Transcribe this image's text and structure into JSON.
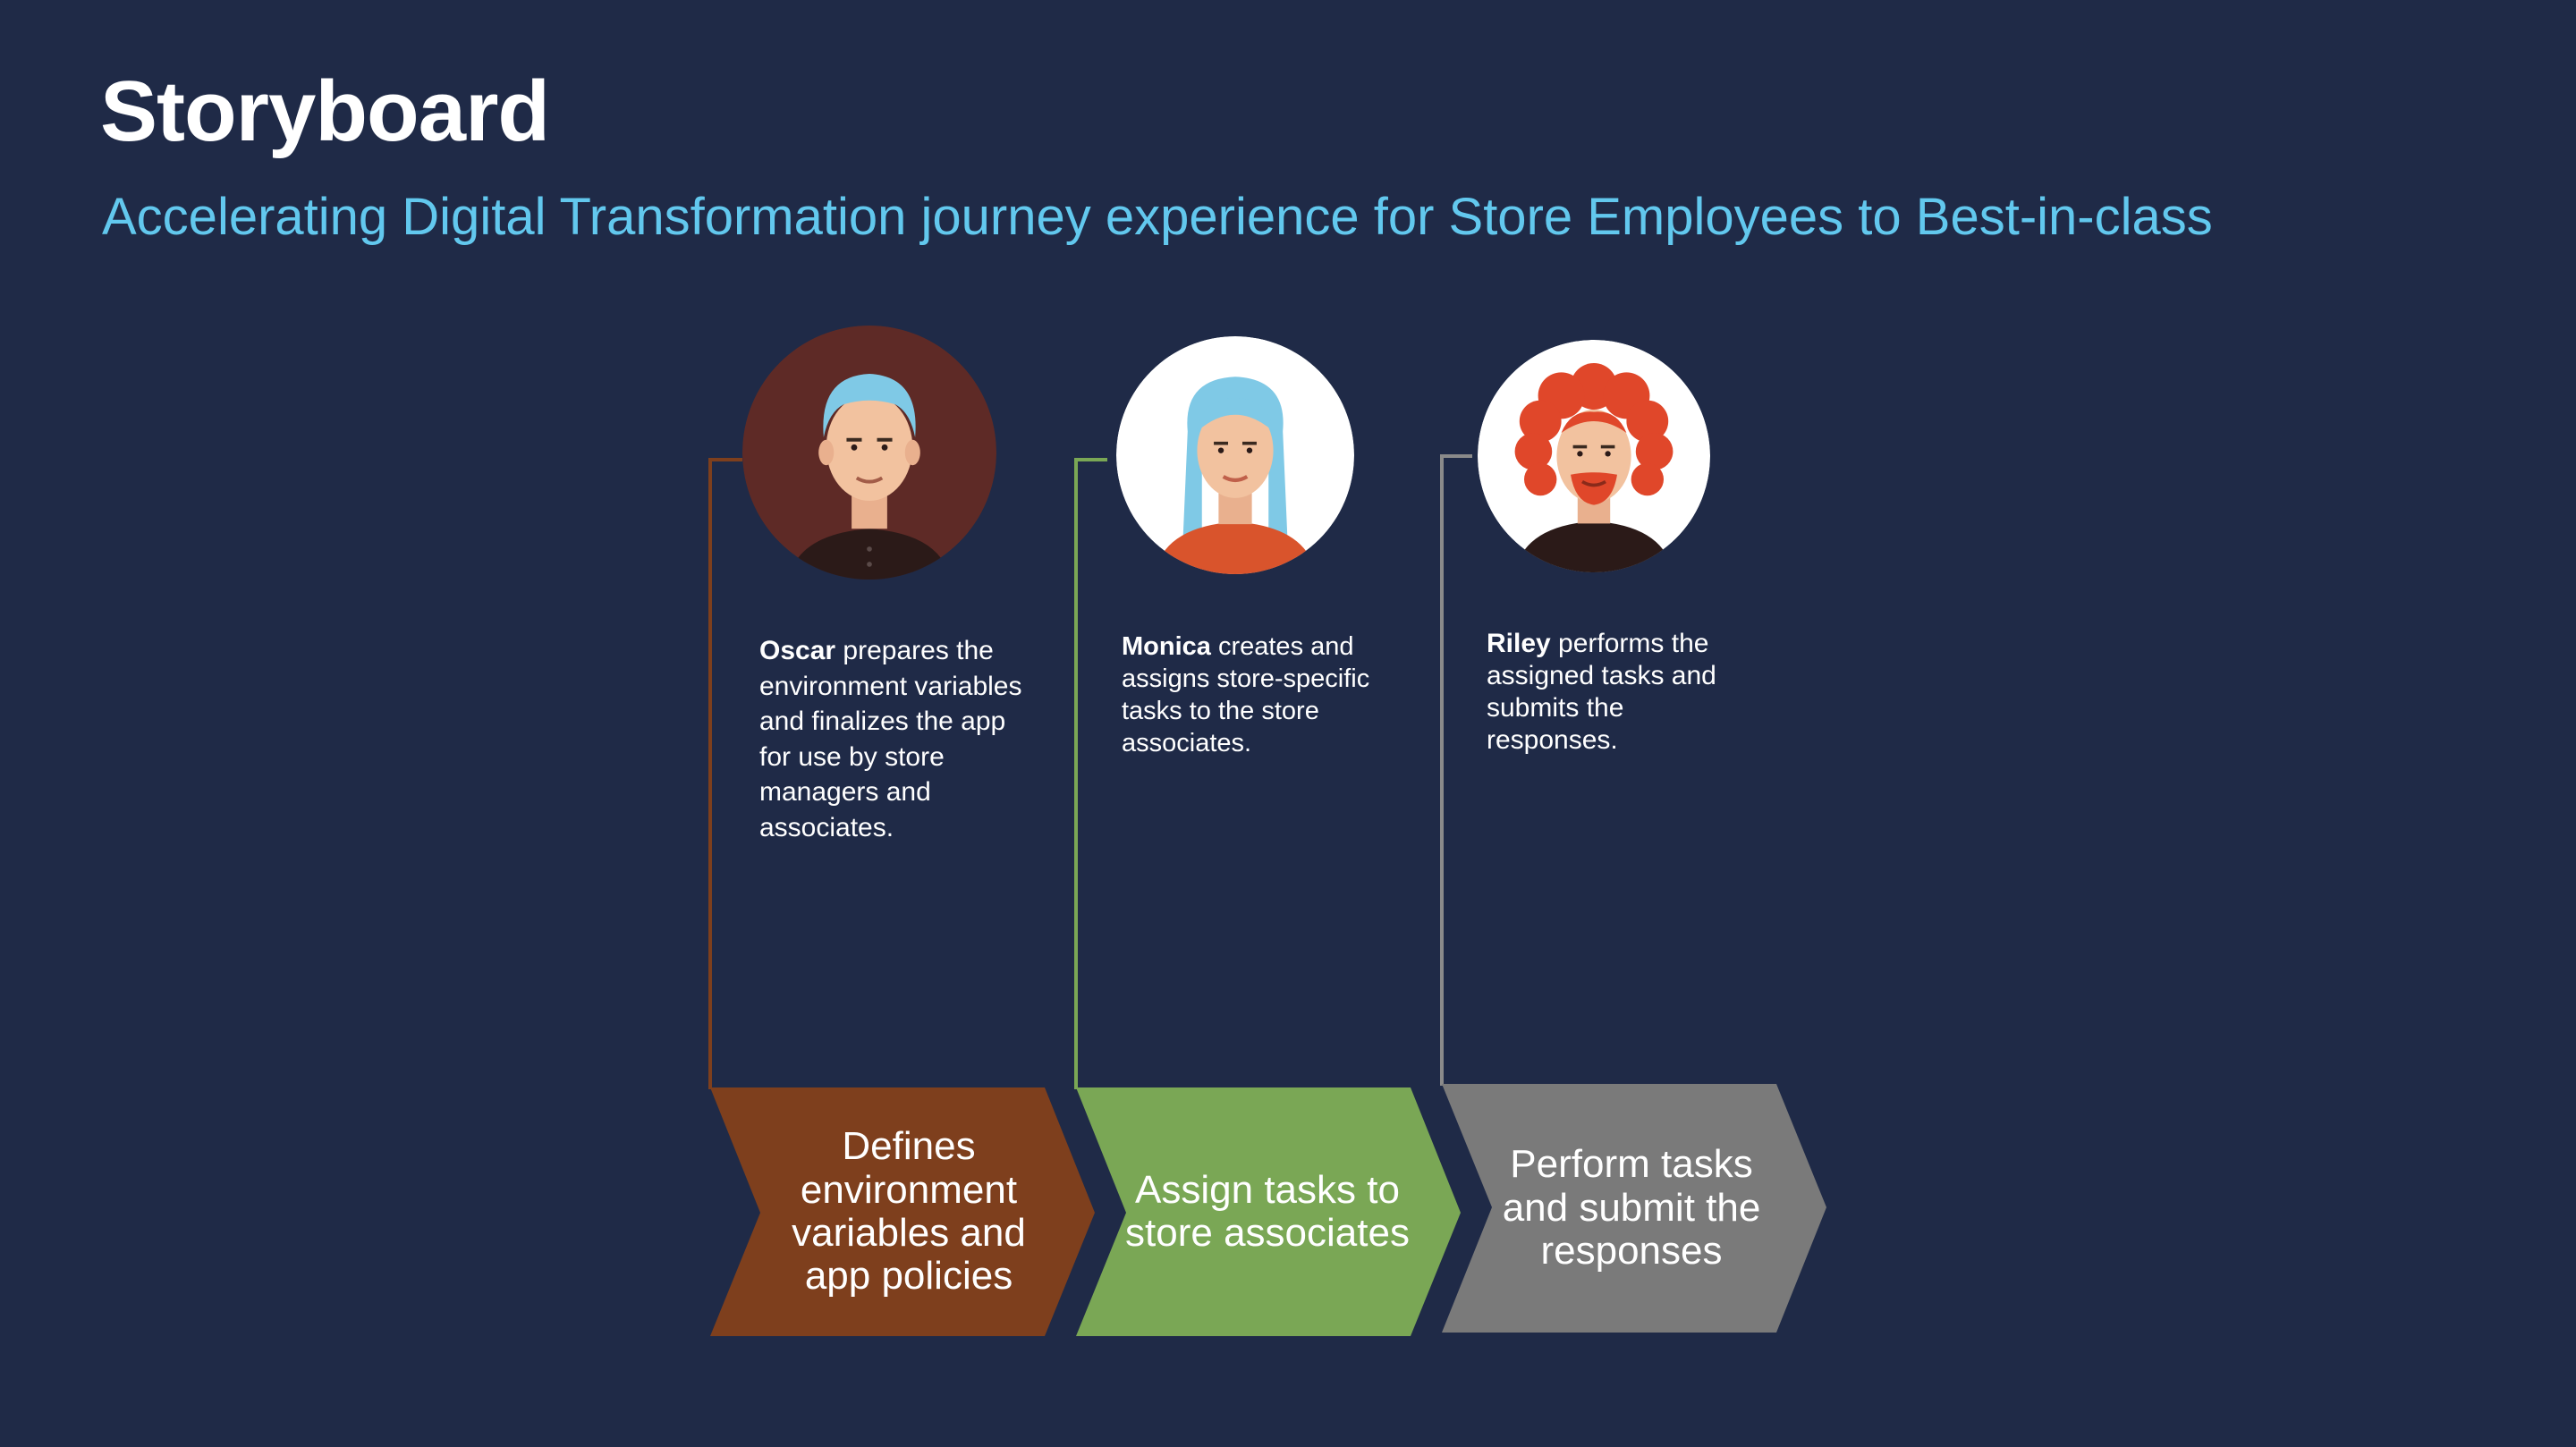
{
  "header": {
    "title": "Storyboard",
    "subtitle": "Accelerating Digital Transformation journey experience for Store Employees to Best-in-class"
  },
  "steps": [
    {
      "persona": "Oscar",
      "description": " prepares the environment variables and finalizes the app for use by store managers and associates.",
      "stage_label": "Defines environment variables and app policies",
      "color": "#7e3f1d",
      "avatar_bg": "#5e2a26",
      "hair_color": "#7fc9e6"
    },
    {
      "persona": "Monica",
      "description": " creates and assigns store-specific tasks to the store associates.",
      "stage_label": "Assign tasks to store associates",
      "color": "#7aa755",
      "avatar_bg": "#ffffff",
      "hair_color": "#7fc9e6"
    },
    {
      "persona": "Riley",
      "description": " performs the assigned tasks and submits the responses.",
      "stage_label": "Perform tasks and submit the responses",
      "color": "#7a7a7a",
      "avatar_bg": "#ffffff",
      "hair_color": "#e0472a"
    }
  ]
}
